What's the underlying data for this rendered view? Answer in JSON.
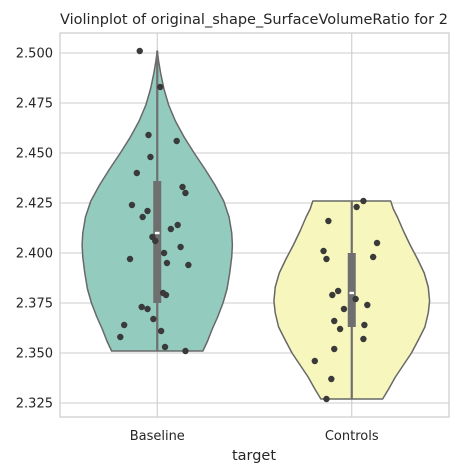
{
  "chart_data": {
    "type": "violin",
    "title": "Violinplot of original_shape_SurfaceVolumeRatio for 2",
    "xlabel": "target",
    "ylabel": "",
    "categories": [
      "Baseline",
      "Controls"
    ],
    "ylim": [
      2.318,
      2.51
    ],
    "yticks": [
      2.325,
      2.35,
      2.375,
      2.4,
      2.425,
      2.45,
      2.475,
      2.5
    ],
    "ytick_labels": [
      "2.325",
      "2.350",
      "2.375",
      "2.400",
      "2.425",
      "2.450",
      "2.475",
      "2.500"
    ],
    "grid": true,
    "colors": {
      "Baseline": "#93cbbf",
      "Controls": "#f7f7bd",
      "outline": "#686868",
      "points": "#3a3a3a",
      "box": "#6f6f6f"
    },
    "violins": [
      {
        "category": "Baseline",
        "profile": [
          [
            2.351,
            0.68
          ],
          [
            2.356,
            0.75
          ],
          [
            2.362,
            0.82
          ],
          [
            2.368,
            0.9
          ],
          [
            2.375,
            0.98
          ],
          [
            2.382,
            1.04
          ],
          [
            2.39,
            1.08
          ],
          [
            2.398,
            1.11
          ],
          [
            2.404,
            1.12
          ],
          [
            2.41,
            1.11
          ],
          [
            2.418,
            1.07
          ],
          [
            2.426,
            0.99
          ],
          [
            2.434,
            0.86
          ],
          [
            2.442,
            0.71
          ],
          [
            2.45,
            0.55
          ],
          [
            2.458,
            0.4
          ],
          [
            2.466,
            0.27
          ],
          [
            2.474,
            0.17
          ],
          [
            2.482,
            0.1
          ],
          [
            2.49,
            0.05
          ],
          [
            2.496,
            0.02
          ],
          [
            2.501,
            0.0
          ]
        ],
        "box": {
          "q1": 2.375,
          "median": 2.41,
          "q3": 2.436,
          "whisker_low": 2.351,
          "whisker_high": 2.501
        },
        "points": [
          [
            2.501,
            -0.18
          ],
          [
            2.483,
            0.03
          ],
          [
            2.459,
            -0.09
          ],
          [
            2.456,
            0.2
          ],
          [
            2.448,
            -0.07
          ],
          [
            2.44,
            -0.21
          ],
          [
            2.433,
            0.26
          ],
          [
            2.43,
            0.29
          ],
          [
            2.424,
            -0.26
          ],
          [
            2.421,
            -0.1
          ],
          [
            2.418,
            -0.15
          ],
          [
            2.414,
            0.21
          ],
          [
            2.412,
            0.14
          ],
          [
            2.408,
            -0.05
          ],
          [
            2.406,
            -0.02
          ],
          [
            2.403,
            0.24
          ],
          [
            2.4,
            0.07
          ],
          [
            2.397,
            -0.28
          ],
          [
            2.395,
            0.1
          ],
          [
            2.394,
            0.32
          ],
          [
            2.38,
            0.06
          ],
          [
            2.379,
            0.09
          ],
          [
            2.373,
            -0.16
          ],
          [
            2.372,
            -0.1
          ],
          [
            2.367,
            -0.04
          ],
          [
            2.364,
            -0.34
          ],
          [
            2.361,
            0.04
          ],
          [
            2.358,
            -0.38
          ],
          [
            2.353,
            0.08
          ],
          [
            2.351,
            0.29
          ]
        ]
      },
      {
        "category": "Controls",
        "profile": [
          [
            2.327,
            0.46
          ],
          [
            2.332,
            0.55
          ],
          [
            2.338,
            0.65
          ],
          [
            2.344,
            0.77
          ],
          [
            2.35,
            0.89
          ],
          [
            2.357,
            1.0
          ],
          [
            2.363,
            1.09
          ],
          [
            2.37,
            1.14
          ],
          [
            2.376,
            1.16
          ],
          [
            2.383,
            1.14
          ],
          [
            2.39,
            1.08
          ],
          [
            2.397,
            0.98
          ],
          [
            2.404,
            0.87
          ],
          [
            2.411,
            0.77
          ],
          [
            2.418,
            0.68
          ],
          [
            2.422,
            0.62
          ],
          [
            2.426,
            0.58
          ]
        ],
        "box": {
          "q1": 2.363,
          "median": 2.38,
          "q3": 2.4,
          "whisker_low": 2.327,
          "whisker_high": 2.426
        },
        "points": [
          [
            2.426,
            0.12
          ],
          [
            2.423,
            0.05
          ],
          [
            2.416,
            -0.24
          ],
          [
            2.405,
            0.26
          ],
          [
            2.401,
            -0.29
          ],
          [
            2.398,
            0.22
          ],
          [
            2.397,
            -0.26
          ],
          [
            2.381,
            -0.14
          ],
          [
            2.379,
            -0.2
          ],
          [
            2.377,
            0.04
          ],
          [
            2.374,
            0.16
          ],
          [
            2.372,
            -0.08
          ],
          [
            2.366,
            -0.18
          ],
          [
            2.364,
            0.13
          ],
          [
            2.362,
            -0.12
          ],
          [
            2.357,
            0.12
          ],
          [
            2.352,
            -0.18
          ],
          [
            2.346,
            -0.38
          ],
          [
            2.337,
            -0.21
          ],
          [
            2.327,
            -0.26
          ]
        ]
      }
    ]
  }
}
